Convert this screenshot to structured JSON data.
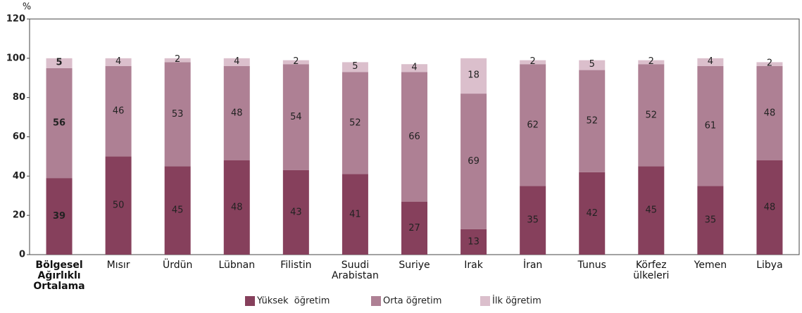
{
  "chart_data": {
    "type": "stacked_bar",
    "y_label": "%",
    "categories": [
      "Bölgesel Ağırlıklı Ortalama",
      "Mısır",
      "Ürdün",
      "Lübnan",
      "Filistin",
      "Suudi Arabistan",
      "Suriye",
      "Irak",
      "İran",
      "Tunus",
      "Körfez ülkeleri",
      "Yemen",
      "Libya"
    ],
    "series": [
      {
        "name": "Yüksek  öğretim",
        "color": "#86405c",
        "values": [
          39,
          50,
          45,
          48,
          43,
          41,
          27,
          13,
          35,
          42,
          45,
          35,
          48
        ]
      },
      {
        "name": "Orta öğretim",
        "color": "#ae8094",
        "values": [
          56,
          46,
          53,
          48,
          54,
          52,
          66,
          69,
          62,
          52,
          52,
          61,
          48
        ]
      },
      {
        "name": "İlk öğretim",
        "color": "#dbbfcc",
        "values": [
          5,
          4,
          2,
          4,
          2,
          5,
          4,
          18,
          2,
          5,
          2,
          4,
          2
        ]
      }
    ],
    "ylim": [
      0,
      120
    ],
    "yticks": [
      0,
      20,
      40,
      60,
      80,
      100,
      120
    ],
    "grid": false,
    "legend": "bottom"
  }
}
